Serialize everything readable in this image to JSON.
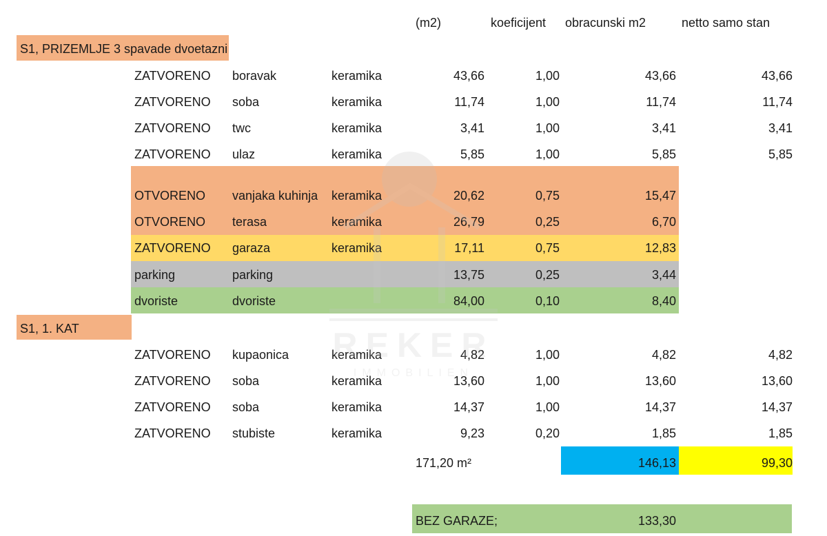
{
  "headers": [
    "(m2)",
    "koeficijent",
    "obracunski m2",
    "netto samo stan"
  ],
  "sections": [
    {
      "title": "S1, PRIZEMLJE 3 spavade dvoetazni",
      "color": "#f4b183"
    },
    {
      "title": "S1, 1. KAT",
      "color": "#f4b183"
    }
  ],
  "rows": [
    {
      "status": "ZATVORENO",
      "room": "boravak",
      "finish": "keramika",
      "m2": "43,66",
      "coef": "1,00",
      "calc": "43,66",
      "net": "43,66"
    },
    {
      "status": "ZATVORENO",
      "room": "soba",
      "finish": "keramika",
      "m2": "11,74",
      "coef": "1,00",
      "calc": "11,74",
      "net": "11,74"
    },
    {
      "status": "ZATVORENO",
      "room": "twc",
      "finish": "keramika",
      "m2": "3,41",
      "coef": "1,00",
      "calc": "3,41",
      "net": "3,41"
    },
    {
      "status": "ZATVORENO",
      "room": "ulaz",
      "finish": "keramika",
      "m2": "5,85",
      "coef": "1,00",
      "calc": "5,85",
      "net": "5,85"
    },
    {
      "status": "OTVORENO",
      "room": "vanjaka kuhinja",
      "finish": "keramika",
      "m2": "20,62",
      "coef": "0,75",
      "calc": "15,47",
      "net": "",
      "color": "#f4b183"
    },
    {
      "status": "OTVORENO",
      "room": "terasa",
      "finish": "keramika",
      "m2": "26,79",
      "coef": "0,25",
      "calc": "6,70",
      "net": "",
      "color": "#f4b183"
    },
    {
      "status": "ZATVORENO",
      "room": "garaza",
      "finish": "keramika",
      "m2": "17,11",
      "coef": "0,75",
      "calc": "12,83",
      "net": "",
      "color": "#ffd966"
    },
    {
      "status": "parking",
      "room": "parking",
      "finish": "",
      "m2": "13,75",
      "coef": "0,25",
      "calc": "3,44",
      "net": "",
      "color": "#bfbfbf"
    },
    {
      "status": "dvoriste",
      "room": "dvoriste",
      "finish": "",
      "m2": "84,00",
      "coef": "0,10",
      "calc": "8,40",
      "net": "",
      "color": "#a9d08e"
    },
    {
      "status": "ZATVORENO",
      "room": "kupaonica",
      "finish": "keramika",
      "m2": "4,82",
      "coef": "1,00",
      "calc": "4,82",
      "net": "4,82"
    },
    {
      "status": "ZATVORENO",
      "room": "soba",
      "finish": "keramika",
      "m2": "13,60",
      "coef": "1,00",
      "calc": "13,60",
      "net": "13,60"
    },
    {
      "status": "ZATVORENO",
      "room": "soba",
      "finish": "keramika",
      "m2": "14,37",
      "coef": "1,00",
      "calc": "14,37",
      "net": "14,37"
    },
    {
      "status": "ZATVORENO",
      "room": "stubiste",
      "finish": "keramika",
      "m2": "9,23",
      "coef": "0,20",
      "calc": "1,85",
      "net": "1,85"
    }
  ],
  "totals": {
    "m2": "171,20 m²",
    "calc": "146,13",
    "calc_color": "#00b0f0",
    "net": "99,30",
    "net_color": "#ffff00"
  },
  "summary": {
    "label": "BEZ GARAZE;",
    "value": "133,30",
    "color": "#a9d08e"
  },
  "watermark": {
    "brand": "REKER",
    "sub": "IMMOBILIEN"
  }
}
